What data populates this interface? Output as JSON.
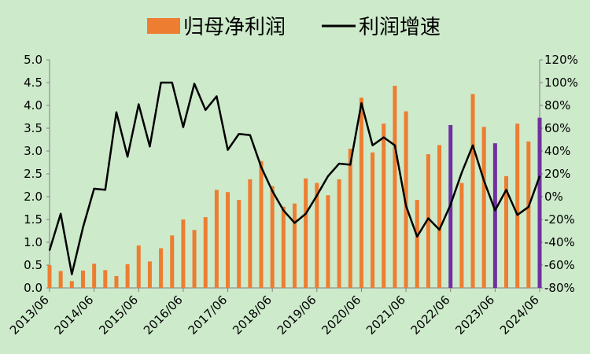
{
  "chart_data": {
    "type": "bar+line",
    "x": [
      "2013/06",
      "2013/09",
      "2013/12",
      "2014/03",
      "2014/06",
      "2014/09",
      "2014/12",
      "2015/03",
      "2015/06",
      "2015/09",
      "2015/12",
      "2016/03",
      "2016/06",
      "2016/09",
      "2016/12",
      "2017/03",
      "2017/06",
      "2017/09",
      "2017/12",
      "2018/03",
      "2018/06",
      "2018/09",
      "2018/12",
      "2019/03",
      "2019/06",
      "2019/09",
      "2019/12",
      "2020/03",
      "2020/06",
      "2020/09",
      "2020/12",
      "2021/03",
      "2021/06",
      "2021/09",
      "2021/12",
      "2022/03",
      "2022/06",
      "2022/09",
      "2022/12",
      "2023/03",
      "2023/06",
      "2023/09",
      "2023/12",
      "2024/03",
      "2024/06"
    ],
    "x_tick_labels": [
      "2013/06",
      "2014/06",
      "2015/06",
      "2016/06",
      "2017/06",
      "2018/06",
      "2019/06",
      "2020/06",
      "2021/06",
      "2022/06",
      "2023/06",
      "2024/06"
    ],
    "series": [
      {
        "name": "归母净利润",
        "type": "bar",
        "axis": "left",
        "color": "#ed7d31",
        "highlight_color": "#7030a0",
        "highlight_indices": [
          36,
          40,
          44
        ],
        "values": [
          0.5,
          0.37,
          0.15,
          0.38,
          0.53,
          0.39,
          0.26,
          0.52,
          0.93,
          0.58,
          0.87,
          1.15,
          1.5,
          1.27,
          1.55,
          2.15,
          2.1,
          1.93,
          2.38,
          2.78,
          2.23,
          1.78,
          1.85,
          2.4,
          2.3,
          2.03,
          2.38,
          3.05,
          4.17,
          2.97,
          3.6,
          4.43,
          3.87,
          1.93,
          2.93,
          3.13,
          3.57,
          2.3,
          4.25,
          3.53,
          3.17,
          2.45,
          3.6,
          3.21,
          3.73
        ]
      },
      {
        "name": "利润增速",
        "type": "line",
        "axis": "right",
        "color": "#000000",
        "values": [
          -47,
          -15,
          -68,
          -27,
          7,
          6,
          74,
          35,
          81,
          44,
          100,
          100,
          61,
          99,
          76,
          88,
          41,
          55,
          54,
          26,
          5,
          -12,
          -23,
          -15,
          1,
          18,
          29,
          28,
          82,
          45,
          52,
          45,
          -8,
          -35,
          -19,
          -29,
          -7,
          21,
          45,
          14,
          -12,
          6,
          -16,
          -9,
          18
        ]
      }
    ],
    "y_left": {
      "ylim": [
        0,
        5
      ],
      "ticks": [
        "0.0",
        "0.5",
        "1.0",
        "1.5",
        "2.0",
        "2.5",
        "3.0",
        "3.5",
        "4.0",
        "4.5",
        "5.0"
      ]
    },
    "y_right": {
      "ylim": [
        -80,
        120
      ],
      "ticks": [
        "-80%",
        "-60%",
        "-40%",
        "-20%",
        "0%",
        "20%",
        "40%",
        "60%",
        "80%",
        "100%",
        "120%"
      ]
    },
    "grid": false,
    "legend": "top-center",
    "title": "",
    "xlabel": "",
    "ylabel": ""
  },
  "style": {
    "background": "#cdeacb",
    "axis_color": "#7f7f7f"
  }
}
